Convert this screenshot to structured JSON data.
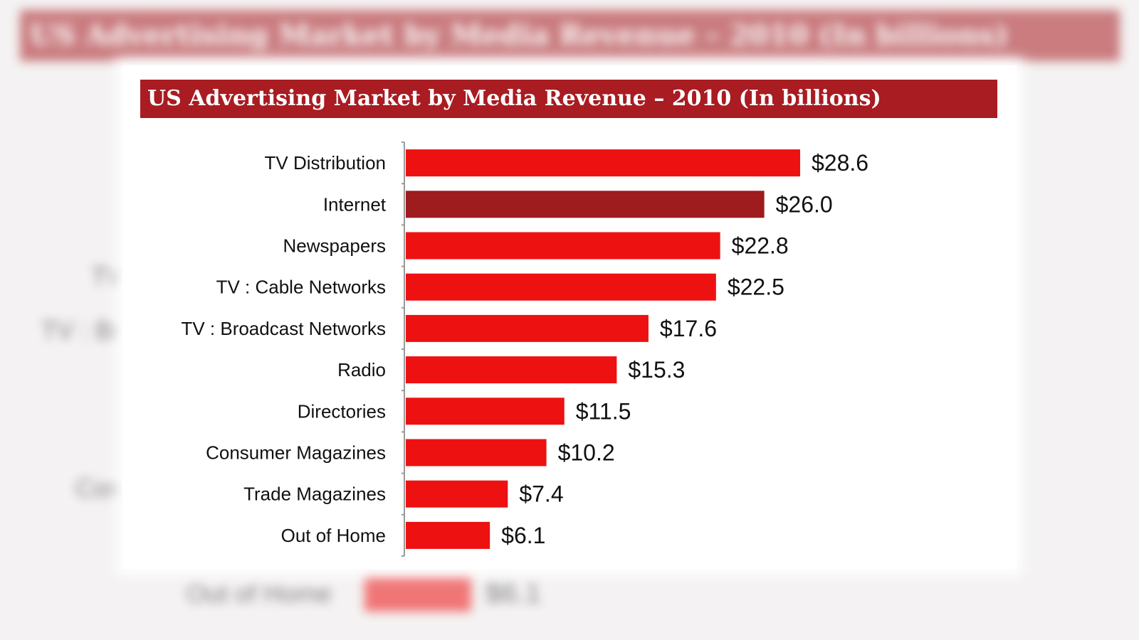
{
  "chart_data": {
    "type": "bar",
    "orientation": "horizontal",
    "title": "US Advertising Market by Media Revenue – 2010 (In billions)",
    "categories": [
      "TV Distribution",
      "Internet",
      "Newspapers",
      "TV : Cable Networks",
      "TV : Broadcast Networks",
      "Radio",
      "Directories",
      "Consumer Magazines",
      "Trade Magazines",
      "Out of Home"
    ],
    "values": [
      28.6,
      26.0,
      22.8,
      22.5,
      17.6,
      15.3,
      11.5,
      10.2,
      7.4,
      6.1
    ],
    "value_labels": [
      "$28.6",
      "$26.0",
      "$22.8",
      "$22.5",
      "$17.6",
      "$15.3",
      "$11.5",
      "$10.2",
      "$7.4",
      "$6.1"
    ],
    "highlight_category": "Internet",
    "xlim": [
      0,
      28.6
    ],
    "grid": false,
    "colors": {
      "bar": "#ee1111",
      "highlight": "#9e1b1e",
      "title_bg": "#a81c22"
    }
  },
  "background": {
    "title": "US Advertising Market by Media Revenue – 2010 (In billions)",
    "fragments": [
      "TV",
      "TV : Br",
      "Con",
      "Out of Home",
      "$6.1"
    ]
  }
}
